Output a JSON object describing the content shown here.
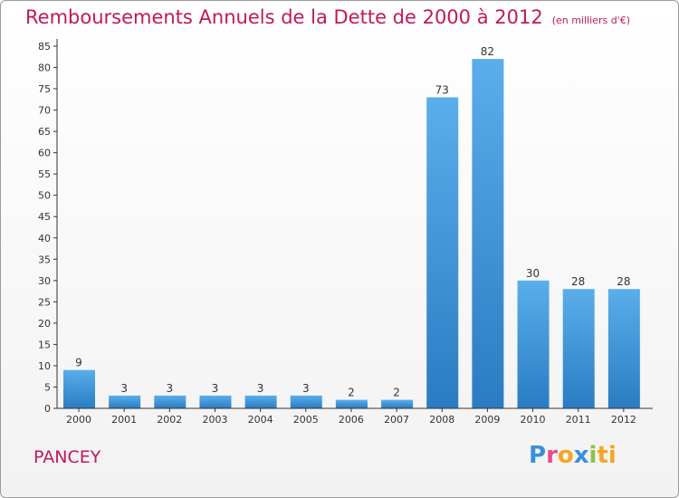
{
  "title": "Remboursements Annuels de la Dette de 2000 à 2012",
  "unit_note": "(en milliers d'€)",
  "place_name": "PANCEY",
  "logo": {
    "text": "Proxiti",
    "letters": [
      "P",
      "r",
      "o",
      "x",
      "i",
      "ti"
    ]
  },
  "colors": {
    "title": "#c2185b",
    "bar_top": "#5aaeea",
    "bar_bottom": "#2a7cc2",
    "axis": "#333333"
  },
  "chart_data": {
    "type": "bar",
    "categories": [
      "2000",
      "2001",
      "2002",
      "2003",
      "2004",
      "2005",
      "2006",
      "2007",
      "2008",
      "2009",
      "2010",
      "2011",
      "2012"
    ],
    "values": [
      9,
      3,
      3,
      3,
      3,
      3,
      2,
      2,
      73,
      82,
      30,
      28,
      28
    ],
    "ylim": [
      0,
      85
    ],
    "yticks": [
      0,
      5,
      10,
      15,
      20,
      25,
      30,
      35,
      40,
      45,
      50,
      55,
      60,
      65,
      70,
      75,
      80,
      85
    ],
    "grid": false,
    "data_labels": true
  }
}
